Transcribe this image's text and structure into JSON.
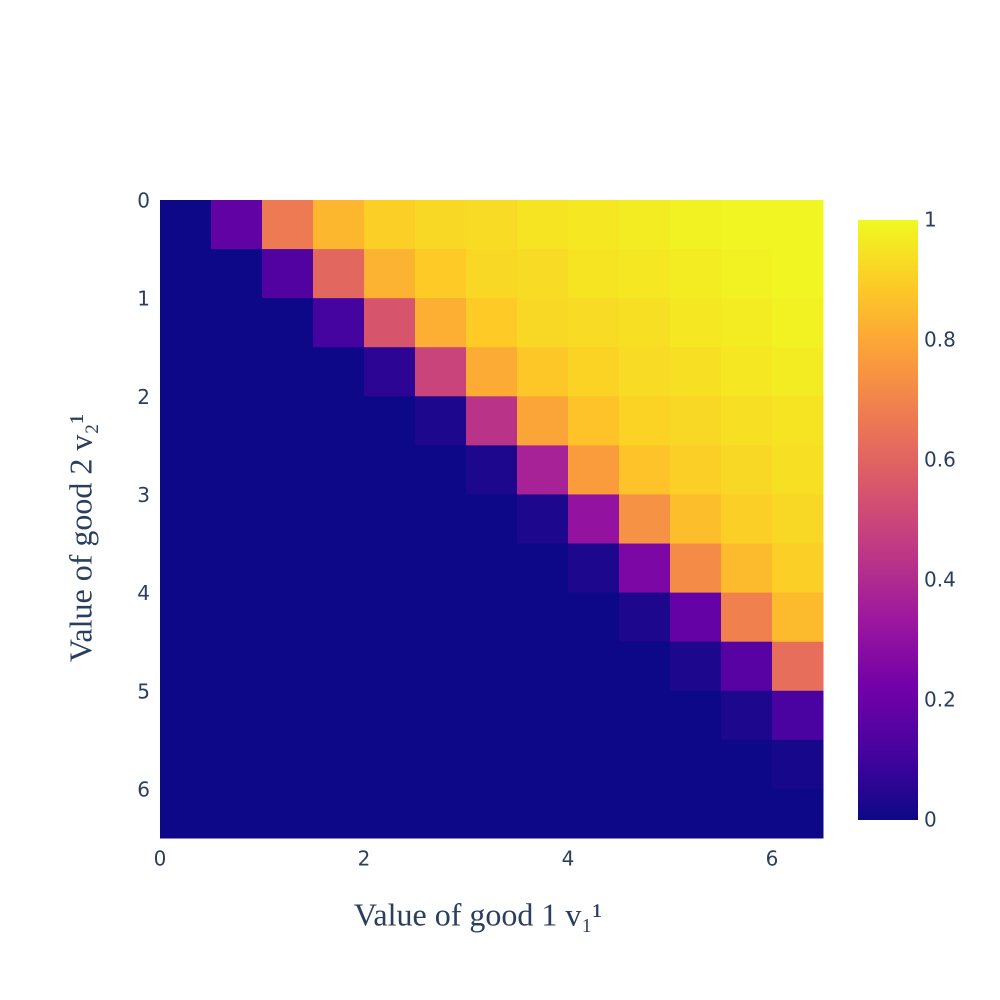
{
  "chart_data": {
    "type": "heatmap",
    "x_label": "Value of good 1 v₁¹",
    "y_label": "Value of good 2 v₂¹",
    "x": [
      0.25,
      0.75,
      1.25,
      1.75,
      2.25,
      2.75,
      3.25,
      3.75,
      4.25,
      4.75,
      5.25,
      5.75,
      6.25
    ],
    "y": [
      0.25,
      0.75,
      1.25,
      1.75,
      2.25,
      2.75,
      3.25,
      3.75,
      4.25,
      4.75,
      5.25,
      5.75,
      6.25
    ],
    "z": [
      [
        0,
        0.18,
        0.67,
        0.84,
        0.9,
        0.92,
        0.93,
        0.95,
        0.96,
        0.97,
        0.98,
        0.99,
        0.99
      ],
      [
        0,
        0,
        0.14,
        0.61,
        0.83,
        0.89,
        0.92,
        0.93,
        0.95,
        0.96,
        0.97,
        0.98,
        0.99
      ],
      [
        0,
        0,
        0,
        0.11,
        0.55,
        0.82,
        0.89,
        0.92,
        0.93,
        0.94,
        0.96,
        0.97,
        0.98
      ],
      [
        0,
        0,
        0,
        0,
        0.06,
        0.49,
        0.81,
        0.88,
        0.91,
        0.93,
        0.94,
        0.96,
        0.97
      ],
      [
        0,
        0,
        0,
        0,
        0,
        0.03,
        0.43,
        0.79,
        0.87,
        0.91,
        0.92,
        0.94,
        0.95
      ],
      [
        0,
        0,
        0,
        0,
        0,
        0,
        0.03,
        0.37,
        0.77,
        0.87,
        0.9,
        0.92,
        0.94
      ],
      [
        0,
        0,
        0,
        0,
        0,
        0,
        0,
        0.03,
        0.31,
        0.74,
        0.86,
        0.9,
        0.92
      ],
      [
        0,
        0,
        0,
        0,
        0,
        0,
        0,
        0,
        0.03,
        0.25,
        0.72,
        0.85,
        0.9
      ],
      [
        0,
        0,
        0,
        0,
        0,
        0,
        0,
        0,
        0,
        0.03,
        0.19,
        0.69,
        0.85
      ],
      [
        0,
        0,
        0,
        0,
        0,
        0,
        0,
        0,
        0,
        0,
        0.03,
        0.16,
        0.63
      ],
      [
        0,
        0,
        0,
        0,
        0,
        0,
        0,
        0,
        0,
        0,
        0,
        0.03,
        0.12
      ],
      [
        0,
        0,
        0,
        0,
        0,
        0,
        0,
        0,
        0,
        0,
        0,
        0,
        0.02
      ],
      [
        0,
        0,
        0,
        0,
        0,
        0,
        0,
        0,
        0,
        0,
        0,
        0,
        0
      ]
    ],
    "xlim": [
      0,
      6.5
    ],
    "xticks": [
      0,
      2,
      4,
      6
    ],
    "ylim": [
      6.5,
      0
    ],
    "yticks": [
      0,
      1,
      2,
      3,
      4,
      5,
      6
    ],
    "zlim": [
      0,
      1
    ],
    "colorbar_ticks": [
      0,
      0.2,
      0.4,
      0.6,
      0.8,
      1
    ],
    "colorscale": [
      [
        0,
        "#0d0887"
      ],
      [
        0.111,
        "#46039f"
      ],
      [
        0.222,
        "#7201a8"
      ],
      [
        0.333,
        "#9c179e"
      ],
      [
        0.444,
        "#bd3786"
      ],
      [
        0.556,
        "#d8576b"
      ],
      [
        0.667,
        "#ed7953"
      ],
      [
        0.778,
        "#fb9f3a"
      ],
      [
        0.889,
        "#fdca26"
      ],
      [
        1,
        "#f0f921"
      ]
    ]
  }
}
